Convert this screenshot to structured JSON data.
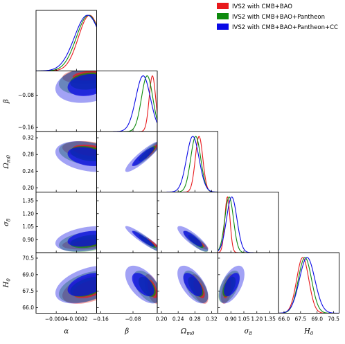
{
  "chart_data": {
    "type": "triangle-corner-plot",
    "parameters": [
      {
        "key": "alpha",
        "label": "α",
        "sub": "",
        "range": [
          -0.0006,
          0.0
        ],
        "ticks": [
          -0.0004,
          -0.0002
        ],
        "tick_labels": [
          "−0.0004",
          "−0.0002"
        ]
      },
      {
        "key": "beta",
        "label": "β",
        "sub": "",
        "range": [
          -0.17,
          -0.02
        ],
        "ticks": [
          -0.16,
          -0.08
        ],
        "tick_labels": [
          "−0.16",
          "−0.08"
        ]
      },
      {
        "key": "omega",
        "label": "Ω",
        "sub": "m0",
        "range": [
          0.19,
          0.335
        ],
        "ticks": [
          0.2,
          0.24,
          0.28,
          0.32
        ],
        "tick_labels": [
          "0.20",
          "0.24",
          "0.28",
          "0.32"
        ]
      },
      {
        "key": "sigma8",
        "label": "σ",
        "sub": "8",
        "range": [
          0.75,
          1.45
        ],
        "ticks": [
          0.9,
          1.05,
          1.2,
          1.35
        ],
        "tick_labels": [
          "0.90",
          "1.05",
          "1.20",
          "1.35"
        ]
      },
      {
        "key": "H0",
        "label": "H",
        "sub": "0",
        "range": [
          65.5,
          71.0
        ],
        "ticks": [
          66.0,
          67.5,
          69.0,
          70.5
        ],
        "tick_labels": [
          "66.0",
          "67.5",
          "69.0",
          "70.5"
        ]
      }
    ],
    "series": [
      {
        "name": "IVS2 with CMB+BAO",
        "color": "#e8191c",
        "means": {
          "alpha": -7e-05,
          "beta": -0.032,
          "omega": 0.29,
          "sigma8": 0.86,
          "H0": 67.7
        },
        "sigmas": {
          "alpha": 0.00011,
          "beta": 0.008,
          "omega": 0.009,
          "sigma8": 0.03,
          "H0": 0.55
        }
      },
      {
        "name": "IVS2 with CMB+BAO+Pantheon",
        "color": "#0e8a0e",
        "means": {
          "alpha": -8e-05,
          "beta": -0.045,
          "omega": 0.282,
          "sigma8": 0.88,
          "H0": 67.9
        },
        "sigmas": {
          "alpha": 0.00012,
          "beta": 0.014,
          "omega": 0.012,
          "sigma8": 0.05,
          "H0": 0.6
        }
      },
      {
        "name": "IVS2 with CMB+BAO+Pantheon+CC",
        "color": "#0a0ae6",
        "means": {
          "alpha": -9e-05,
          "beta": -0.055,
          "omega": 0.275,
          "sigma8": 0.91,
          "H0": 68.1
        },
        "sigmas": {
          "alpha": 0.00013,
          "beta": 0.018,
          "omega": 0.015,
          "sigma8": 0.06,
          "H0": 0.7
        }
      }
    ],
    "correlations": {
      "beta|alpha": 0.2,
      "omega|alpha": -0.3,
      "omega|beta": 0.9,
      "sigma8|alpha": 0.35,
      "sigma8|beta": -0.93,
      "sigma8|omega": -0.85,
      "H0|alpha": 0.45,
      "H0|beta": -0.55,
      "H0|omega": -0.6,
      "H0|sigma8": 0.55
    },
    "contour_levels": [
      "68%",
      "95%"
    ],
    "legend_position": "top-right",
    "grid": false
  }
}
